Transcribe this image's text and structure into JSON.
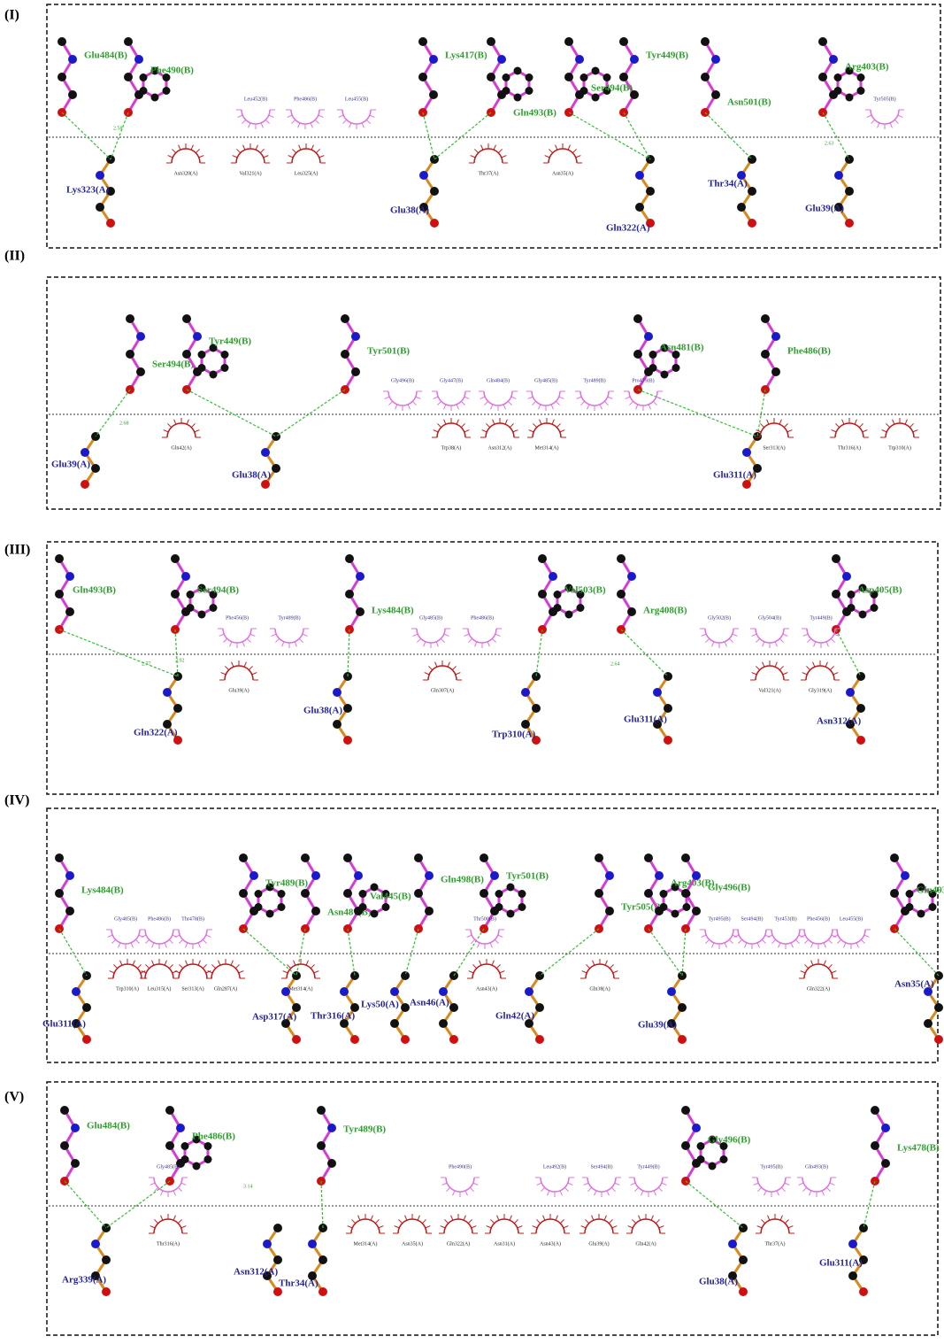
{
  "panels": [
    {
      "label": "(I)",
      "chain_b": [
        "Glu484(B)",
        "Phe490(B)",
        "Lys417(B)",
        "Gln493(B)",
        "Tyr449(B)",
        "Ser494(B)",
        "Asn501(B)",
        "Arg403(B)"
      ],
      "chain_a": [
        "Lys323(A)",
        "Glu38(A)",
        "Gln322(A)",
        "Thr34(A)",
        "Glu39(A)"
      ],
      "hydrophobic_b": [
        "Leu452(B)",
        "Phe486(B)",
        "Leu455(B)",
        "Tyr505(B)"
      ],
      "hydrophobic_a": [
        "Asn320(A)",
        "Val321(A)",
        "Leu325(A)",
        "Thr37(A)",
        "Asn35(A)"
      ],
      "distances": [
        "2.58",
        "2.63"
      ]
    },
    {
      "label": "(II)",
      "chain_b": [
        "Ser494(B)",
        "Tyr449(B)",
        "Tyr501(B)",
        "Asn481(B)",
        "Phe486(B)"
      ],
      "chain_a": [
        "Glu39(A)",
        "Glu38(A)",
        "Glu311(A)"
      ],
      "hydrophobic_b": [
        "Gly496(B)",
        "Gly447(B)",
        "Gln484(B)",
        "Gly485(B)",
        "Tyr489(B)",
        "Pro479(B)"
      ],
      "hydrophobic_a": [
        "Gln42(A)",
        "Trp38(A)",
        "Asn312(A)",
        "Met314(A)",
        "Ser313(A)",
        "Thr316(A)",
        "Trp310(A)"
      ],
      "distances": [
        "2.68"
      ]
    },
    {
      "label": "(III)",
      "chain_b": [
        "Gln493(B)",
        "Ser494(B)",
        "Lys484(B)",
        "Val503(B)",
        "Arg408(B)",
        "Asp405(B)"
      ],
      "chain_a": [
        "Gln322(A)",
        "Glu38(A)",
        "Trp310(A)",
        "Glu311(A)",
        "Asn312(A)"
      ],
      "hydrophobic_b": [
        "Phe456(B)",
        "Tyr489(B)",
        "Gly485(B)",
        "Phe486(B)",
        "Gly502(B)",
        "Gly504(B)",
        "Tyr449(B)"
      ],
      "hydrophobic_a": [
        "Glu39(A)",
        "Gln307(A)",
        "Val321(A)",
        "Gly319(A)"
      ],
      "distances": [
        "2.77",
        "2.92",
        "2.64"
      ]
    },
    {
      "label": "(IV)",
      "chain_b": [
        "Lys484(B)",
        "Tyr489(B)",
        "Asn487(B)",
        "Val445(B)",
        "Gln498(B)",
        "Tyr501(B)",
        "Tyr505(B)",
        "Arg403(B)",
        "Gly496(B)",
        "Gln493(B)"
      ],
      "chain_a": [
        "Glu311(A)",
        "Asp317(A)",
        "Thr316(A)",
        "Lys50(A)",
        "Asn46(A)",
        "Gln42(A)",
        "Glu39(A)",
        "Asn35(A)"
      ],
      "hydrophobic_b": [
        "Gly485(B)",
        "Phe486(B)",
        "Thr478(B)",
        "Thr500(B)",
        "Tyr495(B)",
        "Ser494(B)",
        "Tyr453(B)",
        "Phe456(B)",
        "Leu455(B)"
      ],
      "hydrophobic_a": [
        "Trp310(A)",
        "Leu315(A)",
        "Ser313(A)",
        "Gln287(A)",
        "Met314(A)",
        "Asn43(A)",
        "Gln38(A)",
        "Gln322(A)"
      ],
      "distances": []
    },
    {
      "label": "(V)",
      "chain_b": [
        "Glu484(B)",
        "Phe486(B)",
        "Tyr489(B)",
        "Gly496(B)",
        "Lys478(B)"
      ],
      "chain_a": [
        "Arg339(A)",
        "Asn312(A)",
        "Thr34(A)",
        "Glu38(A)",
        "Glu311(A)"
      ],
      "hydrophobic_b": [
        "Gly485(B)",
        "Phe490(B)",
        "Leu492(B)",
        "Ser494(B)",
        "Tyr449(B)",
        "Tyr495(B)",
        "Gln493(B)"
      ],
      "hydrophobic_a": [
        "Thr316(A)",
        "Met314(A)",
        "Asn35(A)",
        "Gln322(A)",
        "Asn31(A)",
        "Asn43(A)",
        "Glu39(A)",
        "Gln42(A)",
        "Thr37(A)"
      ],
      "distances": [
        "3.14"
      ]
    }
  ]
}
